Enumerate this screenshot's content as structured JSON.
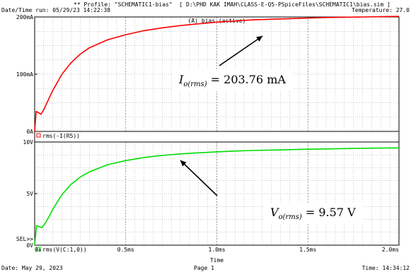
{
  "header": {
    "profile": "** Profile: \"SCHEMATIC1-bias\"  [ D:\\PHD KAK IMAH\\CLASS-E-Q5-PSpiceFiles\\SCHEMATIC1\\bias.sim ]",
    "run_time": "Date/Time run: 05/29/23 14:22:38",
    "temperature": "Temperature: 27.0"
  },
  "footer": {
    "date": "Date: May 29, 2023",
    "page": "Page 1",
    "time": "Time: 14:34:12"
  },
  "chart_data": [
    {
      "type": "line",
      "title": "(A) bias (active)",
      "ylim": [
        0,
        200
      ],
      "y_unit": "mA",
      "yticks": [
        "0A",
        "100mA",
        "200mA"
      ],
      "xlim": [
        0,
        2.0
      ],
      "x_unit": "ms",
      "color": "#ff0000",
      "series": [
        {
          "name": "rms(-I(R5))",
          "x": [
            0,
            0.008,
            0.02,
            0.035,
            0.05,
            0.075,
            0.1,
            0.15,
            0.2,
            0.25,
            0.3,
            0.4,
            0.5,
            0.6,
            0.7,
            0.8,
            0.9,
            1.0,
            1.1,
            1.2,
            1.3,
            1.4,
            1.5,
            1.6,
            1.7,
            1.8,
            1.9,
            2.0
          ],
          "values": [
            0,
            35,
            33,
            30,
            38,
            55,
            72,
            100,
            120,
            135,
            146,
            160,
            169,
            176,
            181,
            185,
            188,
            191,
            193,
            195,
            196,
            197,
            198,
            199,
            199.5,
            200,
            200.5,
            201
          ]
        }
      ],
      "annotation": {
        "lhs": "I",
        "sub": "o(rms)",
        "rhs": "= 203.76 mA"
      }
    },
    {
      "type": "line",
      "ylim": [
        0,
        10
      ],
      "y_unit": "V",
      "yticks": [
        "0V",
        "5V",
        "10V"
      ],
      "xlim": [
        0,
        2.0
      ],
      "x_unit": "ms",
      "xticks": [
        "0s",
        "0.5ms",
        "1.0ms",
        "1.5ms",
        "2.0ms"
      ],
      "xlabel": "Time",
      "color": "#00dd00",
      "series": [
        {
          "name": "rms(V(C:1,0))",
          "x": [
            0,
            0.01,
            0.025,
            0.04,
            0.06,
            0.08,
            0.1,
            0.15,
            0.2,
            0.25,
            0.3,
            0.4,
            0.5,
            0.6,
            0.7,
            0.8,
            0.9,
            1.0,
            1.1,
            1.2,
            1.3,
            1.4,
            1.5,
            1.6,
            1.7,
            1.8,
            1.9,
            2.0
          ],
          "values": [
            0,
            1.9,
            1.8,
            1.7,
            2.2,
            2.8,
            3.5,
            4.9,
            5.9,
            6.6,
            7.1,
            7.8,
            8.2,
            8.5,
            8.7,
            8.85,
            8.95,
            9.05,
            9.12,
            9.18,
            9.22,
            9.26,
            9.3,
            9.33,
            9.36,
            9.39,
            9.41,
            9.43
          ]
        }
      ],
      "annotation": {
        "lhs": "V",
        "sub": "o(rms)",
        "rhs": "= 9.57 V"
      }
    }
  ],
  "sel_marker": "SEL>>"
}
